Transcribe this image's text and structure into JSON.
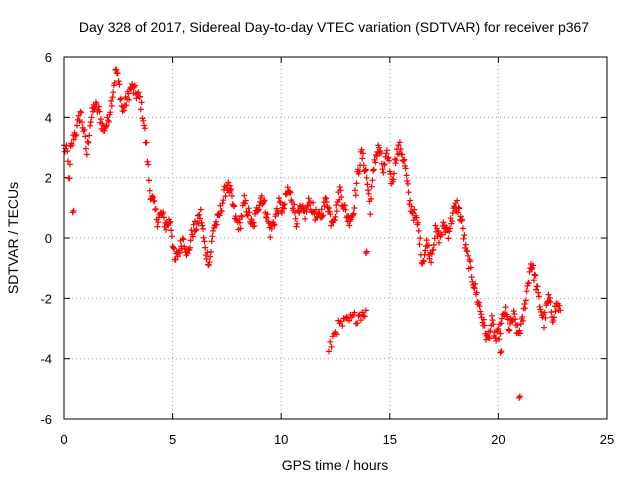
{
  "chart_data": {
    "type": "scatter",
    "title": "Day 328 of 2017, Sidereal Day-to-day VTEC variation (SDTVAR) for receiver p367",
    "xlabel": "GPS time / hours",
    "ylabel": "SDTVAR / TECUs",
    "xlim": [
      0,
      25
    ],
    "ylim": [
      -6,
      6
    ],
    "xticks": [
      "0",
      "5",
      "10",
      "15",
      "20",
      "25"
    ],
    "yticks": [
      "-6",
      "-4",
      "-2",
      "0",
      "2",
      "4",
      "6"
    ],
    "marker": "plus",
    "color": "#ff0000",
    "grid": true,
    "series": [
      {
        "name": "SDTVAR",
        "anchors": [
          [
            0.0,
            3.0
          ],
          [
            0.15,
            2.8
          ],
          [
            0.25,
            1.8
          ],
          [
            0.3,
            2.9
          ],
          [
            0.45,
            3.4
          ],
          [
            0.6,
            3.6
          ],
          [
            0.75,
            4.2
          ],
          [
            0.9,
            3.6
          ],
          [
            1.05,
            2.8
          ],
          [
            1.2,
            3.8
          ],
          [
            1.4,
            4.4
          ],
          [
            1.6,
            4.2
          ],
          [
            1.8,
            3.6
          ],
          [
            2.0,
            3.8
          ],
          [
            2.2,
            4.6
          ],
          [
            2.4,
            5.6
          ],
          [
            2.55,
            5.0
          ],
          [
            2.7,
            4.2
          ],
          [
            2.9,
            4.6
          ],
          [
            3.1,
            5.0
          ],
          [
            3.3,
            4.8
          ],
          [
            3.5,
            4.6
          ],
          [
            3.65,
            4.0
          ],
          [
            3.8,
            3.0
          ],
          [
            3.95,
            1.6
          ],
          [
            4.1,
            1.2
          ],
          [
            4.3,
            0.6
          ],
          [
            4.5,
            0.8
          ],
          [
            4.7,
            0.4
          ],
          [
            4.9,
            0.6
          ],
          [
            5.1,
            -0.8
          ],
          [
            5.3,
            -0.4
          ],
          [
            5.5,
            0.0
          ],
          [
            5.7,
            -0.6
          ],
          [
            5.9,
            0.2
          ],
          [
            6.1,
            0.4
          ],
          [
            6.3,
            0.8
          ],
          [
            6.5,
            -0.4
          ],
          [
            6.7,
            -0.8
          ],
          [
            6.9,
            0.4
          ],
          [
            7.1,
            0.6
          ],
          [
            7.3,
            1.2
          ],
          [
            7.5,
            1.8
          ],
          [
            7.7,
            1.4
          ],
          [
            7.9,
            0.6
          ],
          [
            8.1,
            0.4
          ],
          [
            8.3,
            1.2
          ],
          [
            8.5,
            0.8
          ],
          [
            8.7,
            0.3
          ],
          [
            8.9,
            1.0
          ],
          [
            9.1,
            1.4
          ],
          [
            9.3,
            0.9
          ],
          [
            9.5,
            0.2
          ],
          [
            9.7,
            0.6
          ],
          [
            9.9,
            1.1
          ],
          [
            10.1,
            0.9
          ],
          [
            10.3,
            1.6
          ],
          [
            10.5,
            1.3
          ],
          [
            10.7,
            0.6
          ],
          [
            10.9,
            0.9
          ],
          [
            11.1,
            0.8
          ],
          [
            11.3,
            1.2
          ],
          [
            11.5,
            0.9
          ],
          [
            11.7,
            0.6
          ],
          [
            11.9,
            0.9
          ],
          [
            12.1,
            1.3
          ],
          [
            12.3,
            0.6
          ],
          [
            12.5,
            0.8
          ],
          [
            12.7,
            1.6
          ],
          [
            12.9,
            1.0
          ],
          [
            13.1,
            0.6
          ],
          [
            13.3,
            0.8
          ],
          [
            13.5,
            2.0
          ],
          [
            13.7,
            2.8
          ],
          [
            13.9,
            2.2
          ],
          [
            14.1,
            1.0
          ],
          [
            14.3,
            2.6
          ],
          [
            14.5,
            3.0
          ],
          [
            14.7,
            2.2
          ],
          [
            14.9,
            2.8
          ],
          [
            15.1,
            1.8
          ],
          [
            15.3,
            2.8
          ],
          [
            15.5,
            3.0
          ],
          [
            15.7,
            2.4
          ],
          [
            15.9,
            1.2
          ],
          [
            16.1,
            0.8
          ],
          [
            16.3,
            0.4
          ],
          [
            16.5,
            -0.8
          ],
          [
            16.7,
            -0.2
          ],
          [
            16.9,
            -0.6
          ],
          [
            17.1,
            0.2
          ],
          [
            17.3,
            0.0
          ],
          [
            17.5,
            0.4
          ],
          [
            17.7,
            0.2
          ],
          [
            17.9,
            0.8
          ],
          [
            18.1,
            1.1
          ],
          [
            18.3,
            0.6
          ],
          [
            18.5,
            -0.4
          ],
          [
            18.7,
            -1.0
          ],
          [
            18.9,
            -1.6
          ],
          [
            19.1,
            -2.2
          ],
          [
            19.3,
            -2.8
          ],
          [
            19.5,
            -3.4
          ],
          [
            19.7,
            -2.8
          ],
          [
            19.9,
            -3.4
          ],
          [
            20.1,
            -3.0
          ],
          [
            20.3,
            -2.4
          ],
          [
            20.5,
            -3.0
          ],
          [
            20.7,
            -2.6
          ],
          [
            20.9,
            -3.2
          ],
          [
            21.1,
            -2.8
          ],
          [
            21.3,
            -1.8
          ],
          [
            21.5,
            -0.8
          ],
          [
            21.7,
            -1.4
          ],
          [
            21.9,
            -2.2
          ],
          [
            22.1,
            -2.8
          ],
          [
            22.3,
            -2.0
          ],
          [
            22.5,
            -2.6
          ],
          [
            22.7,
            -2.2
          ],
          [
            22.85,
            -2.4
          ]
        ],
        "segments": [
          [
            [
              12.2,
              -3.8
            ],
            [
              12.5,
              -3.0
            ],
            [
              13.0,
              -2.8
            ],
            [
              13.5,
              -2.6
            ],
            [
              13.9,
              -2.4
            ]
          ]
        ],
        "isolated": [
          [
            0.4,
            0.85
          ],
          [
            20.95,
            -5.3
          ],
          [
            13.9,
            -0.5
          ],
          [
            20.1,
            -3.8
          ]
        ]
      }
    ]
  }
}
